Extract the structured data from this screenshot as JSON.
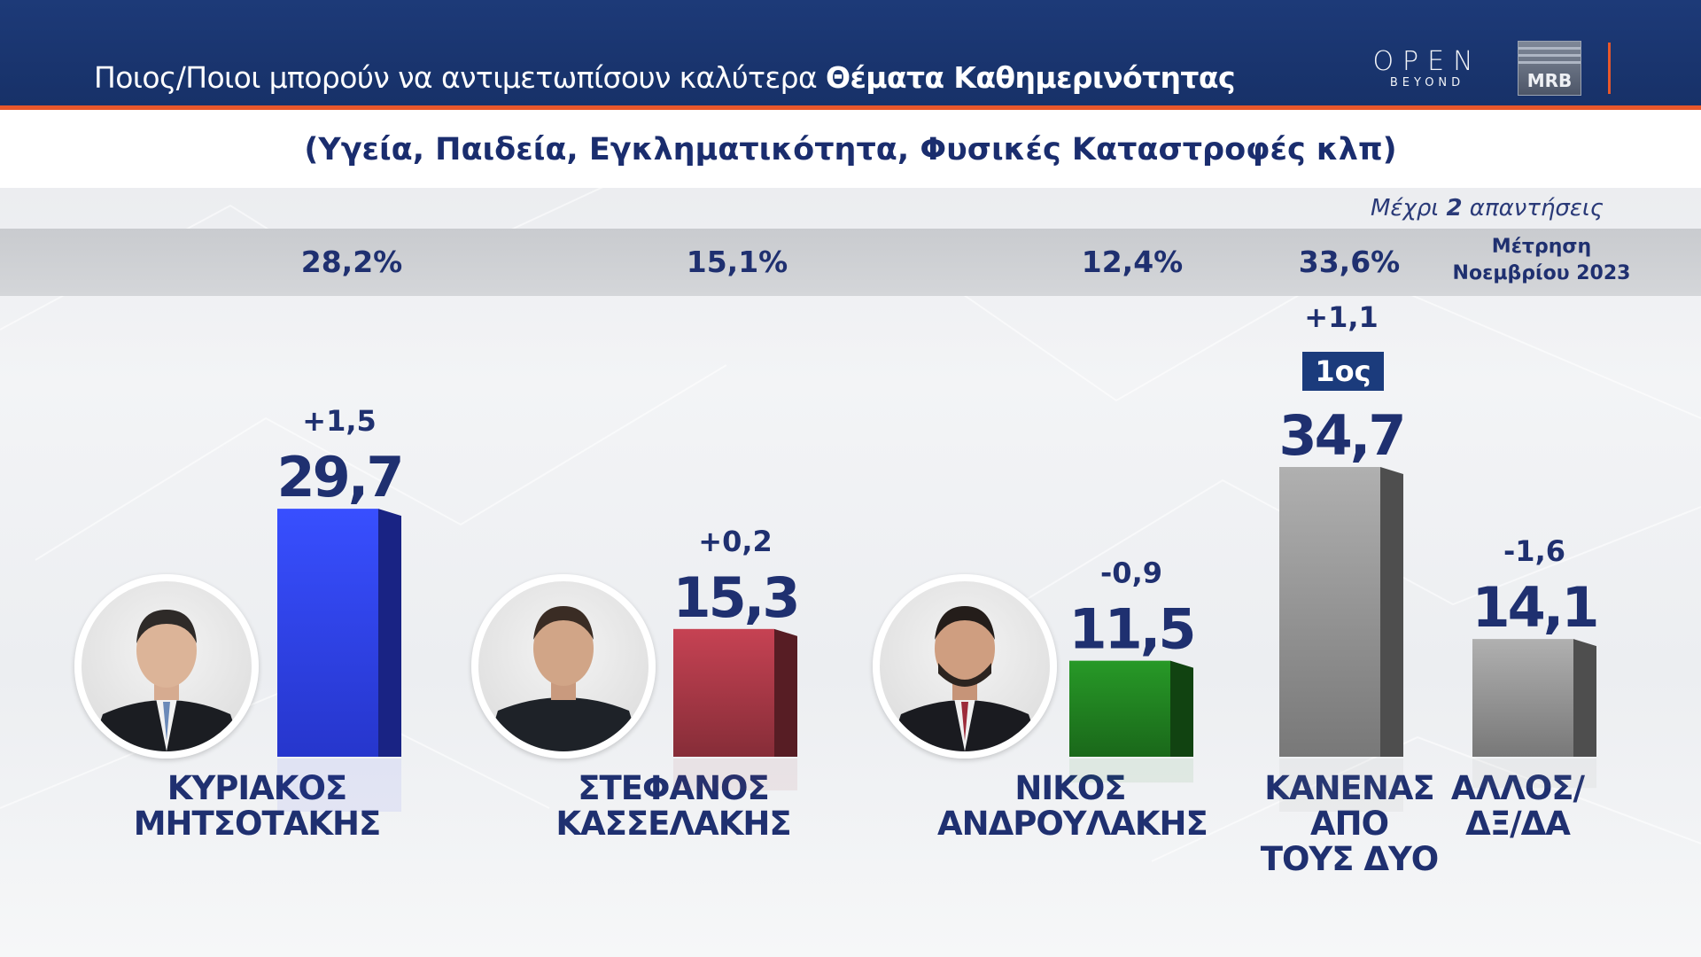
{
  "header": {
    "title_plain": "Ποιος/Ποιοι μπορούν να αντιμετωπίσουν καλύτερα ",
    "title_bold": "Θέματα Καθημερινότητας",
    "logo_open": "OPEN",
    "logo_open_sub": "BEYOND",
    "logo_mrb": "MRB"
  },
  "subtitle": "(Υγεία, Παιδεία, Εγκληματικότητα, Φυσικές Καταστροφές κλπ)",
  "note": {
    "prefix": "Μέχρι ",
    "bold": "2",
    "suffix": " απαντήσεις"
  },
  "previous": {
    "label_line1": "Μέτρηση",
    "label_line2": "Νοεμβρίου 2023",
    "values": [
      "28,2%",
      "15,1%",
      "12,4%",
      "33,6%"
    ]
  },
  "first_badge": "1ος",
  "colors": {
    "header_bg": "#1d3a78",
    "accent": "#e8572a",
    "text_dark": "#1f3070"
  },
  "chart_data": {
    "type": "bar",
    "title": "Ποιος/Ποιοι μπορούν να αντιμετωπίσουν καλύτερα Θέματα Καθημερινότητας",
    "categories": [
      "ΚΥΡΙΑΚΟΣ ΜΗΤΣΟΤΑΚΗΣ",
      "ΣΤΕΦΑΝΟΣ ΚΑΣΣΕΛΑΚΗΣ",
      "ΝΙΚΟΣ ΑΝΔΡΟΥΛΑΚΗΣ",
      "ΚΑΝΕΝΑΣ ΑΠΟ ΤΟΥΣ ΔΥΟ",
      "ΑΛΛΟΣ/ ΔΞ/ΔΑ"
    ],
    "name_lines": [
      [
        "ΚΥΡΙΑΚΟΣ",
        "ΜΗΤΣΟΤΑΚΗΣ"
      ],
      [
        "ΣΤΕΦΑΝΟΣ",
        "ΚΑΣΣΕΛΑΚΗΣ"
      ],
      [
        "ΝΙΚΟΣ",
        "ΑΝΔΡΟΥΛΑΚΗΣ"
      ],
      [
        "ΚΑΝΕΝΑΣ",
        "ΑΠΟ",
        "ΤΟΥΣ ΔΥΟ"
      ],
      [
        "ΑΛΛΟΣ/",
        "ΔΞ/ΔΑ"
      ]
    ],
    "values": [
      29.7,
      15.3,
      11.5,
      34.7,
      14.1
    ],
    "value_labels": [
      "29,7",
      "15,3",
      "11,5",
      "34,7",
      "14,1"
    ],
    "change_labels": [
      "+1,5",
      "+0,2",
      "-0,9",
      "+1,1",
      "-1,6"
    ],
    "previous_labels": [
      "28,2%",
      "15,1%",
      "12,4%",
      "33,6%",
      ""
    ],
    "bar_colors": [
      "#2d3ff0",
      "#9e3542",
      "#1f7a1f",
      "#8d8d8d",
      "#8d8d8d"
    ],
    "ylim": [
      0,
      34.7
    ],
    "grid": false,
    "legend": "none"
  }
}
